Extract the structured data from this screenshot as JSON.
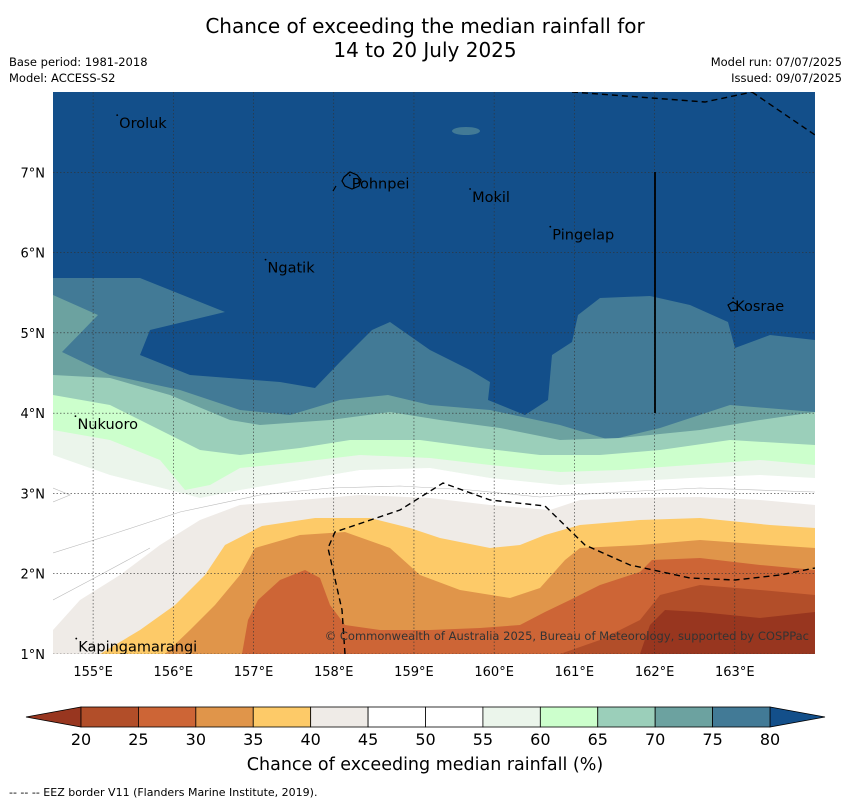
{
  "title": {
    "line1": "Chance of exceeding the median rainfall for",
    "line2": "14 to 20 July 2025"
  },
  "meta": {
    "base_period": "Base period: 1981-2018",
    "model": "Model: ACCESS-S2",
    "model_run": "Model run: 07/07/2025",
    "issued": "Issued: 09/07/2025"
  },
  "map": {
    "lon_range": [
      154.5,
      164
    ],
    "lat_range": [
      1,
      8
    ],
    "lon_ticks": [
      "155°E",
      "156°E",
      "157°E",
      "158°E",
      "159°E",
      "160°E",
      "161°E",
      "162°E",
      "163°E"
    ],
    "lat_ticks": [
      "1°N",
      "2°N",
      "3°N",
      "4°N",
      "5°N",
      "6°N",
      "7°N"
    ],
    "places": [
      {
        "name": "Oroluk",
        "lon": 155.3,
        "lat": 7.6
      },
      {
        "name": "Pohnpei",
        "lon": 158.2,
        "lat": 6.85
      },
      {
        "name": "Mokil",
        "lon": 159.7,
        "lat": 6.68
      },
      {
        "name": "Pingelap",
        "lon": 160.7,
        "lat": 6.21
      },
      {
        "name": "Ngatik",
        "lon": 157.15,
        "lat": 5.8
      },
      {
        "name": "Kosrae",
        "lon": 162.98,
        "lat": 5.32
      },
      {
        "name": "Nukuoro",
        "lon": 154.78,
        "lat": 3.85
      },
      {
        "name": "Kapingamarangi",
        "lon": 154.79,
        "lat": 1.08
      }
    ],
    "copyright": "© Commonwealth of Australia 2025, Bureau of Meteorology, supported by COSPPac"
  },
  "colorbar": {
    "title": "Chance of exceeding median rainfall (%)",
    "labels": [
      "20",
      "25",
      "30",
      "35",
      "40",
      "45",
      "50",
      "55",
      "60",
      "65",
      "70",
      "75",
      "80"
    ],
    "colors": [
      "#b24e29",
      "#cd6536",
      "#e0954a",
      "#fdca68",
      "#efebe7",
      "#ffffff",
      "#ffffff",
      "#ebf5eb",
      "#ccffcc",
      "#9bcfba",
      "#6ca2a0",
      "#427a96"
    ],
    "under_color": "#98361f",
    "over_color": "#134f8a"
  },
  "footnote": "--  --  -- EEZ border V11 (Flanders Marine Institute, 2019)."
}
